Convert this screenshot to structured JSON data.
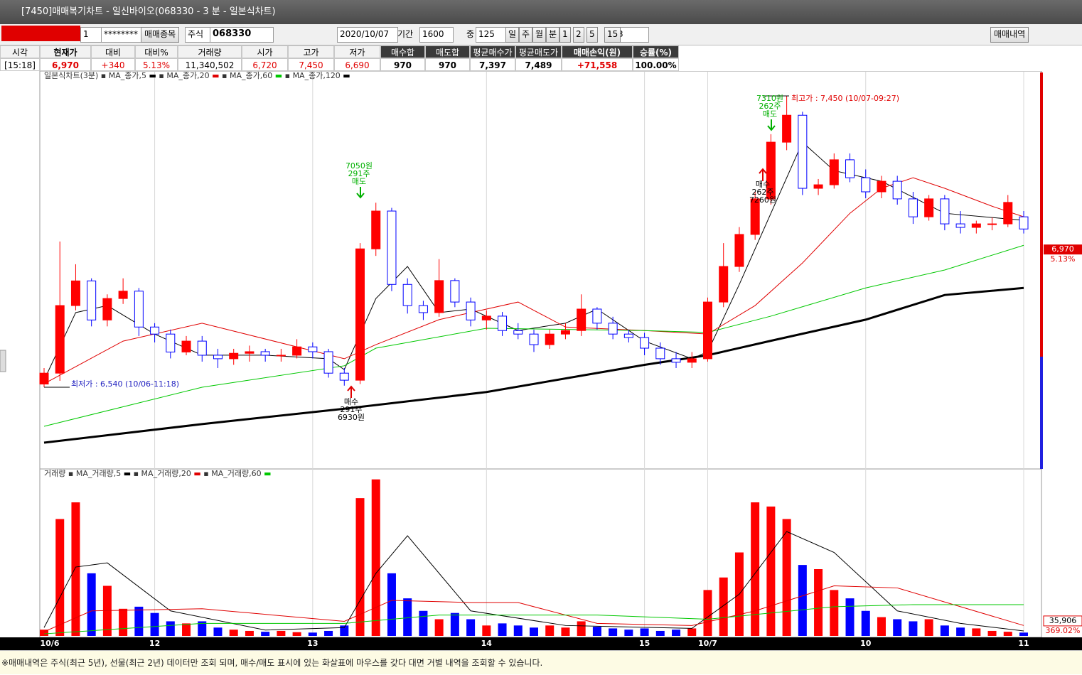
{
  "window": {
    "title": "[7450]매매복기차트 - 일신바이오(068330 - 3 분 - 일본식차트)"
  },
  "toolbar": {
    "account": "1",
    "password": "********",
    "pick": "매매종목",
    "market": "주식",
    "code": "068330",
    "date": "2020/10/07",
    "period_label": "기간",
    "period": "1600",
    "mid_label": "중",
    "count": "125",
    "units": [
      "일",
      "주",
      "월",
      "분"
    ],
    "minutes": [
      "1",
      "2",
      "5",
      "15"
    ],
    "minute": "3",
    "history": "매매내역"
  },
  "summary": {
    "headers": [
      "시각",
      "현재가",
      "대비",
      "대비%",
      "거래량",
      "시가",
      "고가",
      "저가",
      "매수합",
      "매도합",
      "평균매수가",
      "평균매도가",
      "매매손익(원)",
      "승률(%)"
    ],
    "values": [
      "[15:18]",
      "6,970",
      "+340",
      "5.13%",
      "11,340,502",
      "6,720",
      "7,450",
      "6,690",
      "970",
      "970",
      "7,397",
      "7,489",
      "+71,558",
      "100.00%"
    ]
  },
  "chart_data": {
    "type": "candlestick",
    "title": "일본식차트(3분)",
    "categories": [
      "10/6",
      null,
      null,
      null,
      null,
      null,
      null,
      "12",
      null,
      null,
      null,
      null,
      null,
      null,
      null,
      null,
      null,
      "13",
      null,
      null,
      null,
      null,
      null,
      null,
      null,
      null,
      null,
      null,
      "14",
      null,
      null,
      null,
      null,
      null,
      null,
      null,
      null,
      null,
      "15",
      null,
      null,
      null,
      "10/7",
      null,
      null,
      null,
      null,
      null,
      null,
      null,
      null,
      null,
      "10",
      null,
      null,
      null,
      null,
      null,
      null,
      null,
      null,
      null,
      "11"
    ],
    "open": [
      6550,
      6584,
      6795,
      6872,
      6750,
      6817,
      6840,
      6728,
      6706,
      6650,
      6684,
      6640,
      6629,
      6646,
      6651,
      6640,
      6640,
      6666,
      6651,
      6584,
      6562,
      6972,
      7090,
      6861,
      6795,
      6773,
      6873,
      6806,
      6750,
      6762,
      6717,
      6706,
      6673,
      6706,
      6717,
      6784,
      6740,
      6706,
      6695,
      6662,
      6629,
      6618,
      6629,
      6806,
      6917,
      7017,
      7128,
      7305,
      7389,
      7161,
      7172,
      7250,
      7194,
      7150,
      7183,
      7128,
      7072,
      7128,
      7050,
      7039,
      7050,
      7050,
      7072
    ],
    "high": [
      6600,
      6995,
      6924,
      6880,
      6830,
      6880,
      6850,
      6740,
      6720,
      6700,
      6700,
      6660,
      6660,
      6670,
      6660,
      6660,
      6690,
      6680,
      6660,
      6600,
      6990,
      7116,
      7100,
      6880,
      6810,
      6940,
      6880,
      6820,
      6780,
      6775,
      6740,
      6720,
      6720,
      6740,
      6830,
      6790,
      6760,
      6720,
      6710,
      6680,
      6650,
      6650,
      6820,
      6990,
      7040,
      7150,
      7330,
      7450,
      7400,
      7190,
      7270,
      7270,
      7220,
      7200,
      7200,
      7150,
      7140,
      7140,
      7090,
      7060,
      7070,
      7140,
      7090
    ],
    "low": [
      6540,
      6560,
      6780,
      6730,
      6730,
      6800,
      6700,
      6680,
      6630,
      6640,
      6620,
      6600,
      6610,
      6620,
      6620,
      6620,
      6630,
      6630,
      6570,
      6545,
      6550,
      6950,
      6840,
      6770,
      6750,
      6760,
      6790,
      6730,
      6720,
      6700,
      6690,
      6650,
      6660,
      6690,
      6700,
      6720,
      6690,
      6680,
      6640,
      6610,
      6600,
      6600,
      6620,
      6790,
      6900,
      7000,
      7110,
      7280,
      7140,
      7140,
      7160,
      7180,
      7130,
      7130,
      7110,
      7050,
      7060,
      7030,
      7020,
      7020,
      7030,
      7040,
      7020
    ],
    "close": [
      6584,
      6795,
      6872,
      6750,
      6817,
      6840,
      6728,
      6706,
      6650,
      6684,
      6640,
      6629,
      6646,
      6651,
      6640,
      6640,
      6666,
      6651,
      6584,
      6562,
      6972,
      7090,
      6861,
      6795,
      6773,
      6873,
      6806,
      6750,
      6762,
      6717,
      6706,
      6673,
      6706,
      6717,
      6784,
      6740,
      6706,
      6695,
      6662,
      6629,
      6618,
      6629,
      6806,
      6917,
      7017,
      7128,
      7305,
      7389,
      7161,
      7172,
      7250,
      7194,
      7150,
      7183,
      7128,
      7072,
      7128,
      7050,
      7039,
      7050,
      7050,
      7117,
      7034
    ],
    "up_color": "#ff0000",
    "down_color": "#0000ff",
    "ylim": [
      6285,
      7527
    ],
    "grid": true,
    "lines": [
      {
        "name": "MA_종가,5",
        "color": "#000000",
        "width": 1,
        "x": [
          0,
          2,
          4,
          7,
          10,
          14,
          18,
          19,
          21,
          23,
          25,
          27,
          30,
          33,
          35,
          38,
          41,
          42,
          44,
          46,
          48,
          50,
          53,
          57,
          62
        ],
        "values": [
          6562,
          6773,
          6795,
          6706,
          6640,
          6640,
          6629,
          6595,
          6817,
          6917,
          6773,
          6784,
          6717,
          6740,
          6784,
          6684,
          6629,
          6651,
          6861,
          7083,
          7305,
          7216,
          7183,
          7083,
          7061
        ]
      },
      {
        "name": "MA_종가,20",
        "color": "#e00000",
        "width": 1,
        "x": [
          0,
          5,
          10,
          19,
          21,
          25,
          30,
          33,
          38,
          42,
          45,
          48,
          51,
          53,
          55,
          57,
          60,
          62
        ],
        "values": [
          6551,
          6684,
          6740,
          6629,
          6673,
          6751,
          6806,
          6728,
          6717,
          6706,
          6795,
          6928,
          7083,
          7161,
          7194,
          7161,
          7105,
          7072
        ]
      },
      {
        "name": "MA_종가,60",
        "color": "#00c800",
        "width": 1,
        "x": [
          0,
          10,
          19,
          21,
          28,
          38,
          42,
          46,
          52,
          57,
          62
        ],
        "values": [
          6418,
          6540,
          6607,
          6662,
          6724,
          6717,
          6711,
          6762,
          6850,
          6906,
          6983
        ]
      },
      {
        "name": "MA_종가,120",
        "color": "#000000",
        "width": 3,
        "x": [
          0,
          10,
          19,
          28,
          38,
          42,
          46,
          52,
          57,
          62
        ],
        "values": [
          6367,
          6425,
          6473,
          6525,
          6610,
          6640,
          6685,
          6751,
          6828,
          6850
        ]
      }
    ],
    "current": {
      "value": 6970,
      "label": "6,970",
      "change": "5.13%"
    },
    "annotations": {
      "low": "최저가 : 6,540 (10/06-11:18)",
      "high": "최고가 : 7,450 (10/07-09:27)",
      "sell1": [
        "7050원",
        "291주",
        "매도"
      ],
      "buy1": [
        "매수",
        "291주",
        "6930원"
      ],
      "sell2": [
        "7310원",
        "262주",
        "매도"
      ],
      "buy2": [
        "매수",
        "262주",
        "7260원"
      ]
    },
    "volume": {
      "type": "bar",
      "title": "거래량",
      "ylim": [
        0,
        400000
      ],
      "values": [
        15000,
        280000,
        320000,
        150000,
        120000,
        65000,
        70000,
        55000,
        35000,
        30000,
        35000,
        20000,
        15000,
        12000,
        10000,
        12000,
        9000,
        8000,
        12000,
        25000,
        330000,
        375000,
        150000,
        90000,
        60000,
        40000,
        55000,
        40000,
        25000,
        30000,
        25000,
        20000,
        25000,
        20000,
        35000,
        22000,
        18000,
        15000,
        18000,
        12000,
        15000,
        18000,
        110000,
        140000,
        200000,
        320000,
        310000,
        280000,
        170000,
        160000,
        110000,
        90000,
        60000,
        45000,
        40000,
        35000,
        40000,
        25000,
        20000,
        18000,
        12000,
        10000,
        8000
      ],
      "lines": [
        {
          "name": "MA_거래량,5",
          "color": "#000000",
          "x": [
            0,
            2,
            4,
            8,
            14,
            19,
            21,
            23,
            27,
            33,
            41,
            44,
            47,
            50,
            54,
            58,
            62
          ],
          "values": [
            20000,
            165000,
            175000,
            60000,
            14000,
            20000,
            150000,
            240000,
            60000,
            25000,
            18000,
            100000,
            250000,
            200000,
            60000,
            30000,
            12000
          ]
        },
        {
          "name": "MA_거래량,20",
          "color": "#e00000",
          "x": [
            0,
            3,
            10,
            19,
            22,
            27,
            30,
            35,
            41,
            45,
            50,
            54,
            58,
            62
          ],
          "values": [
            10000,
            60000,
            65000,
            35000,
            85000,
            80000,
            80000,
            30000,
            25000,
            60000,
            120000,
            115000,
            70000,
            25000
          ]
        },
        {
          "name": "MA_거래량,60",
          "color": "#00c800",
          "x": [
            0,
            10,
            19,
            25,
            35,
            42,
            50,
            55,
            62
          ],
          "values": [
            5000,
            30000,
            30000,
            50000,
            50000,
            40000,
            70000,
            75000,
            75000
          ]
        }
      ],
      "last": {
        "value": 35906,
        "label": "35,906"
      },
      "ratio": "369.02%"
    }
  },
  "status": "※매매내역은 주식(최근 5년), 선물(최근 2년) 데이터만 조회 되며, 매수/매도 표시에 있는 화살표에 마우스를 갖다 대면 거별 내역을 조회할 수 있습니다."
}
